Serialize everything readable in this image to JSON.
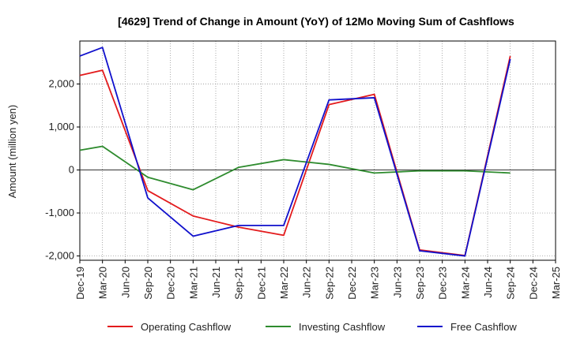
{
  "chart_data": {
    "type": "line",
    "title": "[4629]  Trend of Change in Amount (YoY) of 12Mo Moving Sum of Cashflows",
    "xlabel": "",
    "ylabel": "Amount (million yen)",
    "ylim": [
      -2100,
      3000
    ],
    "yticks": [
      -2000,
      -1000,
      0,
      1000,
      2000
    ],
    "ytick_labels": [
      "-2,000",
      "-1,000",
      "0",
      "1,000",
      "2,000"
    ],
    "grid": true,
    "legend_position": "bottom",
    "categories": [
      "Dec-19",
      "Mar-20",
      "Jun-20",
      "Sep-20",
      "Dec-20",
      "Mar-21",
      "Jun-21",
      "Sep-21",
      "Dec-21",
      "Mar-22",
      "Jun-22",
      "Sep-22",
      "Dec-22",
      "Mar-23",
      "Jun-23",
      "Sep-23",
      "Dec-23",
      "Mar-24",
      "Jun-24",
      "Sep-24",
      "Dec-24",
      "Mar-25"
    ],
    "series": [
      {
        "name": "Operating Cashflow",
        "color": "#e31a1c",
        "values": [
          2200,
          2320,
          null,
          -480,
          null,
          -1070,
          null,
          -1330,
          null,
          -1520,
          null,
          1520,
          null,
          1760,
          null,
          -1860,
          null,
          -1990,
          null,
          2650,
          null,
          null
        ]
      },
      {
        "name": "Investing Cashflow",
        "color": "#2e8b2e",
        "values": [
          460,
          550,
          null,
          -170,
          null,
          -460,
          null,
          60,
          null,
          240,
          null,
          130,
          null,
          -70,
          null,
          -20,
          null,
          -20,
          null,
          -70,
          null,
          null
        ]
      },
      {
        "name": "Free Cashflow",
        "color": "#1010cc",
        "values": [
          2650,
          2850,
          null,
          -650,
          null,
          -1540,
          null,
          -1290,
          null,
          -1290,
          null,
          1630,
          null,
          1680,
          null,
          -1880,
          null,
          -2000,
          null,
          2580,
          null,
          null
        ]
      }
    ]
  }
}
